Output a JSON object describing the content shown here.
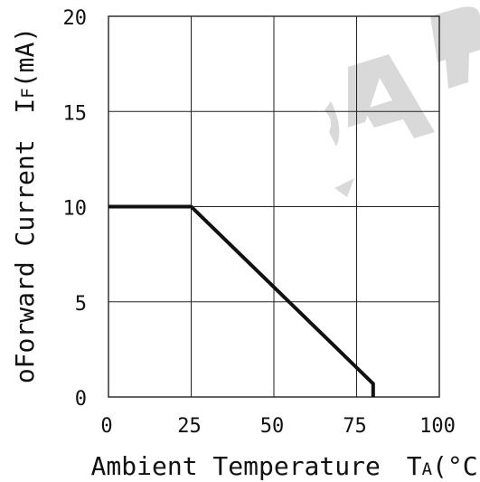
{
  "chart_data": {
    "type": "line",
    "title": "",
    "xlabel": "Ambient Temperature",
    "xlabel_symbol_main": "T",
    "xlabel_symbol_sub": "A",
    "xlabel_unit": "(°C)",
    "ylabel": "Forward Current",
    "ylabel_symbol_main": "I",
    "ylabel_symbol_sub": "F",
    "ylabel_unit": "(mA)",
    "ylabel_prefix": "o",
    "xlim": [
      0,
      100
    ],
    "ylim": [
      0,
      20
    ],
    "x_ticks": [
      0,
      25,
      50,
      75,
      100
    ],
    "y_ticks": [
      0,
      5,
      10,
      15,
      20
    ],
    "x_tick_labels": [
      "0",
      "25",
      "50",
      "75",
      "100"
    ],
    "y_tick_labels": [
      "0",
      "5",
      "10",
      "15",
      "20"
    ],
    "grid": true,
    "series": [
      {
        "x": [
          0,
          25,
          80,
          80
        ],
        "y": [
          10,
          10,
          0.7,
          0
        ]
      }
    ]
  },
  "colors": {
    "line": "#111111",
    "grid": "#222222",
    "watermark": "#d9d9d9"
  }
}
